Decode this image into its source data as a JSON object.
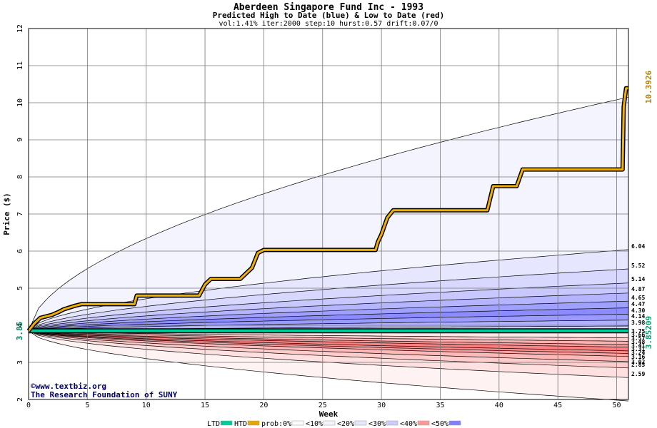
{
  "title": "Aberdeen Singapore Fund Inc - 1993",
  "subtitle": "Predicted High to Date (blue) &  Low to Date (red)",
  "params": "vol:1.41% iter:2000 step:10 hurst:0.57 drift:0.07/0",
  "watermark": {
    "line1": "©www.textbiz.org",
    "line2": "The Research Foundation of SUNY"
  },
  "legend": [
    {
      "label": "LTD",
      "color": "#00cc99"
    },
    {
      "label": "HTD",
      "color": "#e6a800"
    },
    {
      "label": "prob:0%",
      "color": "#fffafa"
    },
    {
      "label": "<10%",
      "color": "#f4f4ff"
    },
    {
      "label": "<20%",
      "color": "#e6e6ff"
    },
    {
      "label": "<30%",
      "color": "#ccccff"
    },
    {
      "label": "<40%",
      "color": "#ff9999"
    },
    {
      "label": "<50%",
      "color": "#8080ff"
    }
  ],
  "chart_data": {
    "type": "area",
    "xlabel": "Week",
    "ylabel": "Price ($)",
    "xlim": [
      0,
      51
    ],
    "ylim": [
      2,
      12
    ],
    "xticks": [
      0,
      5,
      10,
      15,
      20,
      25,
      30,
      35,
      40,
      45,
      50
    ],
    "yticks": [
      2,
      3,
      4,
      5,
      6,
      7,
      8,
      9,
      10,
      11,
      12
    ],
    "grid": true,
    "start_price": "3.85",
    "start_value": 3.85,
    "htd_final_label": "10.3926",
    "ltd_final_label": "3.85209",
    "right_labels": [
      "6.04",
      "5.52",
      "5.14",
      "4.87",
      "4.65",
      "4.47",
      "4.30",
      "4.14",
      "3.98",
      "3.75",
      "3.66",
      "3.57",
      "3.48",
      "3.41",
      "3.31",
      "3.24",
      "3.16",
      "3.02",
      "2.85",
      "2.59"
    ],
    "bands_upper": [
      {
        "final": 10.15,
        "fill": "#f4f4ff"
      },
      {
        "final": 6.04,
        "fill": "#e6e6ff"
      },
      {
        "final": 5.52,
        "fill": "#d8d8ff"
      },
      {
        "final": 5.14,
        "fill": "#c8c8ff"
      },
      {
        "final": 4.87,
        "fill": "#b4b4ff"
      },
      {
        "final": 4.65,
        "fill": "#a0a0ff"
      },
      {
        "final": 4.47,
        "fill": "#8c8cff"
      },
      {
        "final": 4.3,
        "fill": "#9a9aff"
      },
      {
        "final": 4.14,
        "fill": "#b0b0ff"
      },
      {
        "final": 3.98,
        "fill": "#d0d0ff"
      }
    ],
    "bands_lower": [
      {
        "final": 1.96,
        "fill": "#fff2f2"
      },
      {
        "final": 2.59,
        "fill": "#ffe0e0"
      },
      {
        "final": 2.85,
        "fill": "#ffcccc"
      },
      {
        "final": 3.02,
        "fill": "#ffb8b8"
      },
      {
        "final": 3.16,
        "fill": "#ffa0a0"
      },
      {
        "final": 3.24,
        "fill": "#ff8c8c"
      },
      {
        "final": 3.31,
        "fill": "#ff8080"
      },
      {
        "final": 3.41,
        "fill": "#ff9999"
      },
      {
        "final": 3.48,
        "fill": "#ffb0b0"
      },
      {
        "final": 3.57,
        "fill": "#ffcccc"
      },
      {
        "final": 3.66,
        "fill": "#ffe6e6"
      }
    ],
    "htd_series": {
      "name": "HTD",
      "x": [
        0,
        0.5,
        1,
        2,
        2.5,
        3,
        3.5,
        4,
        4.5,
        9,
        9.2,
        14.5,
        15,
        15.5,
        18,
        18.5,
        19,
        19.5,
        20,
        29.5,
        29.7,
        30,
        30.5,
        31,
        39,
        39.5,
        41.5,
        42,
        50.5,
        50.6,
        50.8,
        51
      ],
      "y": [
        3.85,
        4.05,
        4.2,
        4.28,
        4.35,
        4.43,
        4.48,
        4.53,
        4.57,
        4.57,
        4.8,
        4.8,
        5.1,
        5.25,
        5.25,
        5.4,
        5.55,
        5.95,
        6.03,
        6.03,
        6.25,
        6.45,
        6.9,
        7.1,
        7.1,
        7.75,
        7.75,
        8.2,
        8.2,
        9.9,
        10.39,
        10.39
      ]
    },
    "ltd_series": {
      "name": "LTD",
      "x": [
        0,
        51
      ],
      "y": [
        3.85,
        3.85
      ]
    }
  }
}
